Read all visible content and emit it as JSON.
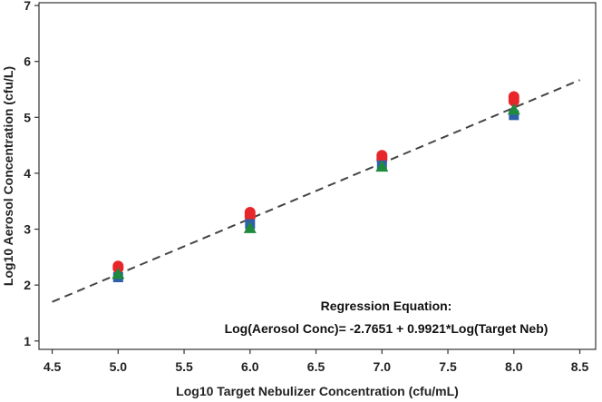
{
  "chart_data": {
    "type": "scatter",
    "xlabel": "Log10 Target Nebulizer Concentration (cfu/mL)",
    "ylabel": "Log10 Aerosol Concentration  (cfu/L)",
    "xlim": [
      4.4,
      8.62
    ],
    "ylim": [
      0.85,
      7.05
    ],
    "x_ticks": [
      "4.5",
      "5.0",
      "5.5",
      "6.0",
      "6.5",
      "7.0",
      "7.5",
      "8.0",
      "8.5"
    ],
    "y_ticks": [
      "1",
      "2",
      "3",
      "4",
      "5",
      "6",
      "7"
    ],
    "grid": false,
    "series": [
      {
        "name": "red-circles",
        "marker": "circle",
        "color": "#e8262a",
        "points": [
          [
            5.0,
            2.34
          ],
          [
            5.0,
            2.3
          ],
          [
            6.0,
            3.3
          ],
          [
            6.0,
            3.26
          ],
          [
            6.0,
            3.22
          ],
          [
            7.0,
            4.32
          ],
          [
            7.0,
            4.28
          ],
          [
            7.0,
            4.24
          ],
          [
            8.0,
            5.37
          ],
          [
            8.0,
            5.33
          ],
          [
            8.0,
            5.29
          ]
        ]
      },
      {
        "name": "blue-squares",
        "marker": "square",
        "color": "#2f5fa8",
        "points": [
          [
            5.0,
            2.14
          ],
          [
            6.0,
            3.09
          ],
          [
            7.0,
            4.14
          ],
          [
            8.0,
            5.04
          ]
        ]
      },
      {
        "name": "green-triangles",
        "marker": "triangle",
        "color": "#1e8a3c",
        "points": [
          [
            5.0,
            2.2
          ],
          [
            6.0,
            3.02
          ],
          [
            7.0,
            4.12
          ],
          [
            8.0,
            5.14
          ]
        ]
      }
    ],
    "regression_line": {
      "intercept": -2.7651,
      "slope": 0.9921,
      "x_range": [
        4.5,
        8.5
      ],
      "style": "dashed",
      "color": "#444444"
    },
    "annotation": {
      "line1": "Regression Equation:",
      "line2": "Log(Aerosol Conc)= -2.7651 + 0.9921*Log(Target Neb)"
    }
  }
}
